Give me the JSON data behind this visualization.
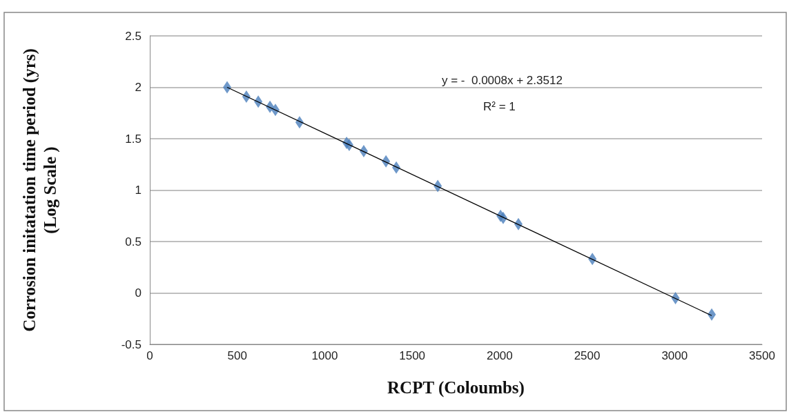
{
  "chart_data": {
    "type": "scatter",
    "xlabel": "RCPT (Coloumbs)",
    "ylabel": "Corrosion initatation time period (yrs)\n(Log Scale )",
    "xlim": [
      0,
      3500
    ],
    "xticks": [
      0,
      500,
      1000,
      1500,
      2000,
      2500,
      3000,
      3500
    ],
    "ylim": [
      -0.5,
      2.5
    ],
    "yticks": [
      -0.5,
      0,
      0.5,
      1,
      1.5,
      2,
      2.5
    ],
    "grid": "y",
    "marker": "diamond",
    "annotations": [
      "y = -  0.0008x + 2.3512",
      "R² = 1"
    ],
    "series": [
      {
        "color": "#4a7ebb",
        "x": [
          442,
          552,
          620,
          687,
          718,
          856,
          1125,
          1140,
          1223,
          1350,
          1409,
          1646,
          2005,
          2020,
          2107,
          2530,
          3005,
          3212
        ],
        "values": [
          2.0,
          1.91,
          1.86,
          1.81,
          1.78,
          1.66,
          1.46,
          1.44,
          1.38,
          1.28,
          1.22,
          1.04,
          0.75,
          0.73,
          0.67,
          0.33,
          -0.05,
          -0.21
        ]
      },
      {
        "type": "line",
        "marker": "none",
        "color": "#000000",
        "x": [
          442,
          3212
        ],
        "values": [
          2.0,
          -0.22
        ]
      }
    ]
  }
}
